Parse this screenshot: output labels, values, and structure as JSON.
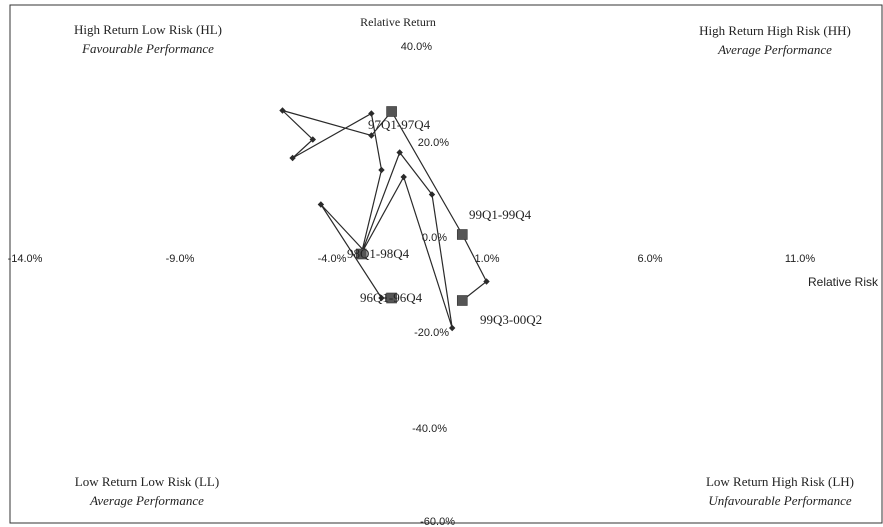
{
  "quadrants": {
    "top_left": {
      "title": "High Return Low Risk (HL)",
      "subtitle": "Favourable Performance"
    },
    "top_right": {
      "title": "High Return High Risk (HH)",
      "subtitle": "Average Performance"
    },
    "bottom_left": {
      "title": "Low Return Low Risk (LL)",
      "subtitle": "Average Performance"
    },
    "bottom_right": {
      "title": "Low Return High Risk (LH)",
      "subtitle": "Unfavourable Performance"
    }
  },
  "chart_data": {
    "type": "scatter",
    "xlabel": "Relative Risk",
    "ylabel": "Relative Return",
    "xlim": [
      -14,
      16
    ],
    "ylim": [
      -60,
      50
    ],
    "x_ticks": [
      {
        "value": -14,
        "label": "-14.0%"
      },
      {
        "value": -9,
        "label": "-9.0%"
      },
      {
        "value": -4,
        "label": "-4.0%"
      },
      {
        "value": 1,
        "label": "1.0%"
      },
      {
        "value": 6,
        "label": "6.0%"
      },
      {
        "value": 11,
        "label": "11.0%"
      }
    ],
    "y_ticks": [
      {
        "value": 40,
        "label": "40.0%"
      },
      {
        "value": 20,
        "label": "20.0%"
      },
      {
        "value": 0,
        "label": "0.0%"
      },
      {
        "value": -20,
        "label": "-20.0%"
      },
      {
        "value": -40,
        "label": "-40.0%"
      },
      {
        "value": -60,
        "label": "-60.0%"
      }
    ],
    "grid": false,
    "series": [
      {
        "points": [
          {
            "x": -2.1,
            "y": -12.4
          },
          {
            "x": -2.6,
            "y": -12.4
          },
          {
            "x": -5.6,
            "y": 6.3
          },
          {
            "x": -3.5,
            "y": -2.8
          },
          {
            "x": -1.5,
            "y": 11.8
          },
          {
            "x": 0.9,
            "y": -18.4
          },
          {
            "x": -0.1,
            "y": 8.3
          },
          {
            "x": -1.7,
            "y": 16.7
          },
          {
            "x": -3.6,
            "y": -3.6
          },
          {
            "x": -2.6,
            "y": 13.2
          },
          {
            "x": -3.1,
            "y": 24.5
          },
          {
            "x": -7.0,
            "y": 15.6
          },
          {
            "x": -6.0,
            "y": 19.3
          },
          {
            "x": -7.5,
            "y": 25.1
          },
          {
            "x": -3.1,
            "y": 20.1
          },
          {
            "x": -2.1,
            "y": 24.9
          },
          {
            "x": 1.4,
            "y": 0.3
          },
          {
            "x": 2.6,
            "y": -9.1
          },
          {
            "x": 1.4,
            "y": -12.9
          }
        ],
        "period_markers": [
          {
            "label": "96Q1-96Q4",
            "x": -2.1,
            "y": -12.4
          },
          {
            "label": "98Q1-98Q4",
            "x": -3.6,
            "y": -3.6
          },
          {
            "label": "97Q1-97Q4",
            "x": -2.1,
            "y": 24.9
          },
          {
            "label": "99Q1-99Q4",
            "x": 1.4,
            "y": 0.3
          },
          {
            "label": "99Q3-00Q2",
            "x": 1.4,
            "y": -12.9
          }
        ]
      }
    ]
  },
  "colors": {
    "line": "#2a2a2a",
    "marker": "#555555",
    "border": "#333333",
    "text": "#222222"
  }
}
